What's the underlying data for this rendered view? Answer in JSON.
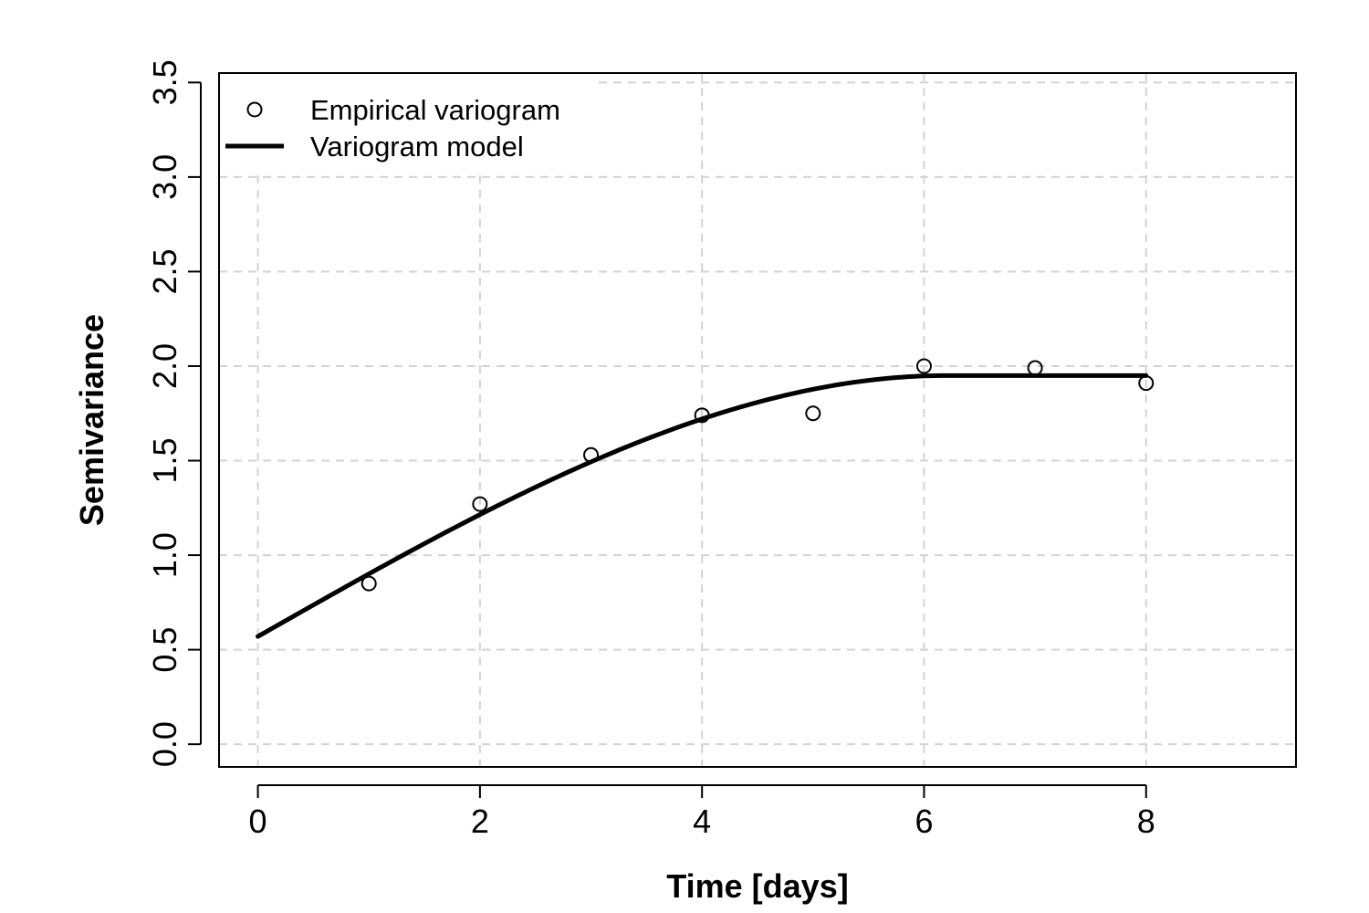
{
  "chart_data": {
    "type": "scatter",
    "xlabel": "Time [days]",
    "ylabel": "Semivariance",
    "xlim": [
      -0.35,
      9.35
    ],
    "ylim": [
      -0.12,
      3.55
    ],
    "x_ticks": [
      "0",
      "2",
      "4",
      "6",
      "8"
    ],
    "y_ticks": [
      "0.0",
      "0.5",
      "1.0",
      "1.5",
      "2.0",
      "2.5",
      "3.0",
      "3.5"
    ],
    "grid": true,
    "legend_position": "top-left",
    "series": [
      {
        "name": "Empirical variogram",
        "style": "points",
        "marker": "open-circle",
        "color": "#000000",
        "x": [
          1,
          2,
          3,
          4,
          5,
          6,
          7,
          8
        ],
        "y": [
          0.85,
          1.27,
          1.53,
          1.74,
          1.75,
          2.0,
          1.99,
          1.91
        ]
      },
      {
        "name": "Variogram model",
        "style": "line",
        "color": "#000000",
        "model": "spherical",
        "nugget": 0.57,
        "sill": 1.95,
        "range": 6.2,
        "x_range": [
          0,
          8
        ]
      }
    ],
    "colors": {
      "grid": "#d3d3d3",
      "frame": "#000000"
    }
  }
}
